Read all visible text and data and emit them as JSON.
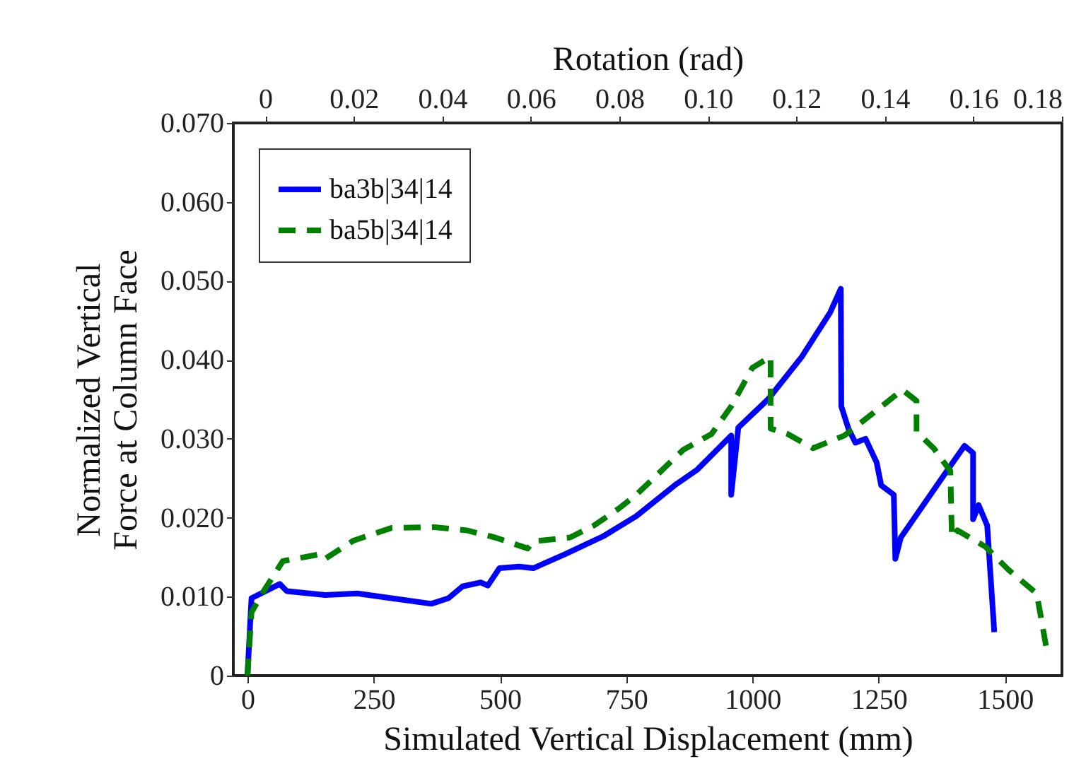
{
  "chart_data": {
    "type": "line",
    "xlabel": "Simulated Vertical Displacement (mm)",
    "x2label": "Rotation (rad)",
    "ylabel": "Normalized Vertical\nForce at Column Face",
    "xlim": [
      -28,
      1613
    ],
    "xticks": [
      0,
      250,
      500,
      750,
      1000,
      1250,
      1500
    ],
    "x2lim": [
      -0.0072,
      0.18
    ],
    "x2ticks": [
      {
        "value": 0,
        "label": "0"
      },
      {
        "value": 0.02,
        "label": "0.02"
      },
      {
        "value": 0.04,
        "label": "0.04"
      },
      {
        "value": 0.06,
        "label": "0.06"
      },
      {
        "value": 0.08,
        "label": "0.08"
      },
      {
        "value": 0.1,
        "label": "0.10"
      },
      {
        "value": 0.12,
        "label": "0.12"
      },
      {
        "value": 0.14,
        "label": "0.14"
      },
      {
        "value": 0.16,
        "label": "0.16"
      },
      {
        "value": 0.18,
        "label": "0.18"
      }
    ],
    "ylim": [
      0,
      0.07
    ],
    "yticks": [
      {
        "value": 0,
        "label": "0"
      },
      {
        "value": 0.01,
        "label": "0.010"
      },
      {
        "value": 0.02,
        "label": "0.020"
      },
      {
        "value": 0.03,
        "label": "0.030"
      },
      {
        "value": 0.04,
        "label": "0.040"
      },
      {
        "value": 0.05,
        "label": "0.050"
      },
      {
        "value": 0.06,
        "label": "0.060"
      },
      {
        "value": 0.07,
        "label": "0.070"
      }
    ],
    "grid": false,
    "legend": "top left",
    "series": [
      {
        "name": "ba3b|34|14",
        "color": "#0000ff",
        "line_style": "solid",
        "x": [
          0,
          8,
          64,
          78,
          154,
          218,
          285,
          364,
          398,
          426,
          462,
          476,
          499,
          538,
          566,
          630,
          706,
          770,
          846,
          891,
          958,
          958,
          972,
          1031,
          1098,
          1154,
          1175,
          1176,
          1190,
          1204,
          1224,
          1246,
          1255,
          1280,
          1283,
          1294,
          1387,
          1420,
          1437,
          1437,
          1448,
          1465,
          1479
        ],
        "values": [
          0,
          0.0098,
          0.0116,
          0.0107,
          0.0102,
          0.0104,
          0.0098,
          0.0091,
          0.0098,
          0.0113,
          0.0118,
          0.0114,
          0.0136,
          0.0138,
          0.0136,
          0.0154,
          0.0177,
          0.0202,
          0.0241,
          0.0261,
          0.0304,
          0.0229,
          0.0314,
          0.035,
          0.0404,
          0.046,
          0.049,
          0.0341,
          0.0313,
          0.0295,
          0.03,
          0.027,
          0.0241,
          0.0229,
          0.0148,
          0.0175,
          0.0261,
          0.0291,
          0.0282,
          0.0198,
          0.0216,
          0.019,
          0.0055
        ]
      },
      {
        "name": "ba5b|34|14",
        "color": "#008000",
        "line_style": "dashed",
        "x": [
          0,
          8,
          34,
          70,
          146,
          154,
          210,
          285,
          370,
          434,
          490,
          555,
          566,
          639,
          686,
          734,
          770,
          863,
          919,
          958,
          1000,
          1036,
          1036,
          1070,
          1120,
          1182,
          1238,
          1297,
          1325,
          1325,
          1359,
          1392,
          1395,
          1406,
          1462,
          1507,
          1563,
          1583
        ],
        "values": [
          0,
          0.008,
          0.0109,
          0.0145,
          0.0154,
          0.0148,
          0.0171,
          0.0187,
          0.0188,
          0.0184,
          0.0175,
          0.0161,
          0.017,
          0.0175,
          0.019,
          0.0211,
          0.0229,
          0.0286,
          0.0306,
          0.0341,
          0.039,
          0.0404,
          0.0313,
          0.0306,
          0.0288,
          0.0304,
          0.0332,
          0.0362,
          0.0348,
          0.0309,
          0.0288,
          0.0259,
          0.0175,
          0.0184,
          0.0163,
          0.0134,
          0.0104,
          0.0032
        ]
      }
    ]
  }
}
